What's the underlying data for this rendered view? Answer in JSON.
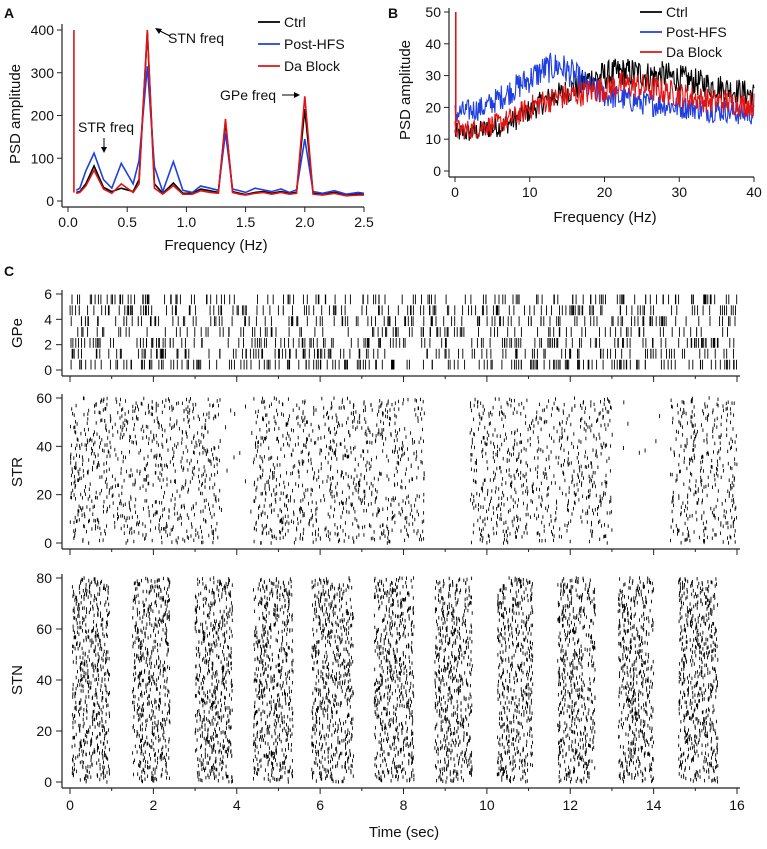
{
  "panels": [
    {
      "letter": "A",
      "chart_data": {
        "type": "line",
        "xlabel": "Frequency (Hz)",
        "ylabel": "PSD amplitude",
        "xlim": [
          0,
          2.5
        ],
        "ylim": [
          0,
          400
        ],
        "xticks": [
          "0.0",
          "0.5",
          "1.0",
          "1.5",
          "2.0",
          "2.5"
        ],
        "yticks": [
          "0",
          "100",
          "200",
          "300",
          "400"
        ],
        "legend": {
          "position": "top-right",
          "entries": [
            "Ctrl",
            "Post-HFS",
            "Da Block"
          ]
        },
        "annotations": [
          {
            "text": "STN freq",
            "x": 0.67,
            "y": 400
          },
          {
            "text": "STR freq",
            "x": 0.22,
            "y": 112
          },
          {
            "text": "GPe freq",
            "x": 2.0,
            "y": 245
          }
        ],
        "x": [
          0.05,
          0.07,
          0.1,
          0.15,
          0.22,
          0.3,
          0.37,
          0.45,
          0.55,
          0.6,
          0.67,
          0.73,
          0.8,
          0.89,
          0.97,
          1.05,
          1.12,
          1.2,
          1.27,
          1.33,
          1.39,
          1.45,
          1.5,
          1.58,
          1.65,
          1.72,
          1.8,
          1.87,
          1.93,
          2.0,
          2.07,
          2.15,
          2.25,
          2.35,
          2.45,
          2.5
        ],
        "series": [
          {
            "name": "Ctrl",
            "color": "#000000",
            "values": [
              400,
              20,
              22,
              40,
              82,
              32,
              22,
              30,
              22,
              50,
              395,
              40,
              18,
              42,
              18,
              18,
              28,
              24,
              20,
              185,
              22,
              18,
              15,
              20,
              22,
              18,
              22,
              18,
              20,
              215,
              18,
              16,
              20,
              14,
              16,
              16
            ]
          },
          {
            "name": "Post-HFS",
            "color": "#1f3fe0",
            "values": [
              0,
              25,
              30,
              70,
              112,
              50,
              30,
              88,
              40,
              95,
              315,
              80,
              22,
              92,
              25,
              20,
              35,
              30,
              25,
              160,
              28,
              24,
              20,
              30,
              26,
              22,
              28,
              20,
              26,
              145,
              22,
              18,
              24,
              16,
              20,
              18
            ]
          },
          {
            "name": "Da Block",
            "color": "#e01414",
            "values": [
              400,
              18,
              20,
              35,
              72,
              28,
              18,
              40,
              20,
              40,
              400,
              30,
              16,
              36,
              16,
              16,
              24,
              20,
              18,
              192,
              20,
              16,
              14,
              18,
              20,
              16,
              20,
              16,
              18,
              245,
              16,
              14,
              18,
              12,
              14,
              14
            ]
          }
        ]
      }
    },
    {
      "letter": "B",
      "chart_data": {
        "type": "line",
        "xlabel": "Frequency (Hz)",
        "ylabel": "PSD amplitude",
        "xlim": [
          0,
          40
        ],
        "ylim": [
          0,
          50
        ],
        "xticks": [
          "0",
          "10",
          "20",
          "30",
          "40"
        ],
        "yticks": [
          "0",
          "10",
          "20",
          "30",
          "40",
          "50"
        ],
        "legend": {
          "position": "top-right",
          "entries": [
            "Ctrl",
            "Post-HFS",
            "Da Block"
          ]
        },
        "spike_at_zero": 50,
        "x": [
          0,
          2,
          4,
          6,
          8,
          10,
          12,
          14,
          16,
          18,
          20,
          22,
          24,
          26,
          28,
          30,
          32,
          34,
          36,
          38,
          40
        ],
        "series": [
          {
            "name": "Ctrl",
            "color": "#000000",
            "values": [
              12,
              12,
              13,
              14,
              16,
              19,
              22,
              24,
              26,
              29,
              30,
              31,
              31,
              30,
              30,
              29,
              28,
              27,
              26,
              25,
              24
            ]
          },
          {
            "name": "Post-HFS",
            "color": "#1f3fe0",
            "values": [
              18,
              19,
              20,
              23,
              26,
              29,
              32,
              33,
              30,
              26,
              24,
              23,
              22,
              21,
              21,
              20,
              20,
              19,
              19,
              18,
              18
            ]
          },
          {
            "name": "Da Block",
            "color": "#e01414",
            "values": [
              13,
              13,
              14,
              15,
              17,
              20,
              22,
              23,
              24,
              25,
              26,
              27,
              27,
              26,
              25,
              24,
              23,
              22,
              22,
              21,
              21
            ]
          }
        ]
      }
    },
    {
      "letter": "C",
      "chart_data": {
        "type": "scatter",
        "subtype": "spike raster",
        "xlabel": "Time (sec)",
        "xlim": [
          0,
          16
        ],
        "xticks": [
          "0",
          "2",
          "4",
          "6",
          "8",
          "10",
          "12",
          "14",
          "16"
        ],
        "rasters": [
          {
            "ylabel": "GPe",
            "ylim": [
              0,
              6
            ],
            "yticks": [
              "0",
              "2",
              "4",
              "6"
            ],
            "rows": 7,
            "pattern": "tonic",
            "active_intervals": [
              [
                0,
                16
              ]
            ]
          },
          {
            "ylabel": "STR",
            "ylim": [
              0,
              65
            ],
            "yticks": [
              "0",
              "20",
              "40",
              "60"
            ],
            "rows": 65,
            "pattern": "bursting",
            "active_intervals": [
              [
                0,
                3.6
              ],
              [
                4.4,
                8.5
              ],
              [
                9.6,
                13.0
              ],
              [
                14.4,
                16
              ]
            ]
          },
          {
            "ylabel": "STN",
            "ylim": [
              0,
              80
            ],
            "yticks": [
              "0",
              "20",
              "40",
              "60",
              "80"
            ],
            "rows": 80,
            "pattern": "bursting",
            "active_intervals": [
              [
                0.05,
                0.95
              ],
              [
                1.5,
                2.4
              ],
              [
                3.0,
                3.9
              ],
              [
                4.4,
                5.35
              ],
              [
                5.8,
                6.8
              ],
              [
                7.3,
                8.25
              ],
              [
                8.75,
                9.65
              ],
              [
                10.25,
                11.1
              ],
              [
                11.7,
                12.6
              ],
              [
                13.15,
                14.0
              ],
              [
                14.6,
                15.55
              ]
            ]
          }
        ]
      }
    }
  ]
}
